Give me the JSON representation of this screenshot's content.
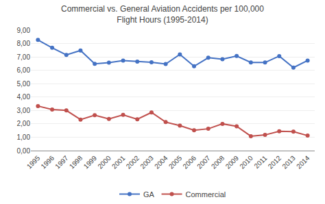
{
  "chart_data": {
    "type": "line",
    "title": "Commercial vs. General Aviation Accidents per 100,000\nFlight Hours (1995-2014)",
    "x": [
      1995,
      1996,
      1997,
      1998,
      1999,
      2000,
      2001,
      2002,
      2003,
      2004,
      2005,
      2006,
      2007,
      2008,
      2009,
      2010,
      2011,
      2012,
      2013,
      2014
    ],
    "series": [
      {
        "name": "GA",
        "color": "#4472c4",
        "marker": "circle",
        "line_style": "solid",
        "values": [
          8.27,
          7.68,
          7.15,
          7.48,
          6.48,
          6.57,
          6.73,
          6.65,
          6.6,
          6.47,
          7.19,
          6.3,
          6.94,
          6.83,
          7.07,
          6.59,
          6.58,
          7.06,
          6.2,
          6.73
        ]
      },
      {
        "name": "Commercial",
        "color": "#c0504d",
        "marker": "circle",
        "line_style": "solid",
        "values": [
          3.33,
          3.07,
          3.0,
          2.32,
          2.65,
          2.37,
          2.67,
          2.34,
          2.85,
          2.13,
          1.87,
          1.52,
          1.63,
          2.0,
          1.82,
          1.08,
          1.17,
          1.44,
          1.42,
          1.12
        ]
      }
    ],
    "xlim": [
      1994.5,
      2014.5
    ],
    "xticks": [
      1995,
      1996,
      1997,
      1998,
      1999,
      2000,
      2001,
      2002,
      2003,
      2004,
      2005,
      2006,
      2007,
      2008,
      2009,
      2010,
      2011,
      2012,
      2013,
      2014
    ],
    "ylim": [
      0,
      9
    ],
    "yticks": [
      {
        "value": 0,
        "label": "0,00"
      },
      {
        "value": 1,
        "label": "1,00"
      },
      {
        "value": 2,
        "label": "2,00"
      },
      {
        "value": 3,
        "label": "3,00"
      },
      {
        "value": 4,
        "label": "4,00"
      },
      {
        "value": 5,
        "label": "5,00"
      },
      {
        "value": 6,
        "label": "6,00"
      },
      {
        "value": 7,
        "label": "7,00"
      },
      {
        "value": 8,
        "label": "8,00"
      },
      {
        "value": 9,
        "label": "9,00"
      }
    ],
    "grid": true,
    "legend": "bottom"
  }
}
